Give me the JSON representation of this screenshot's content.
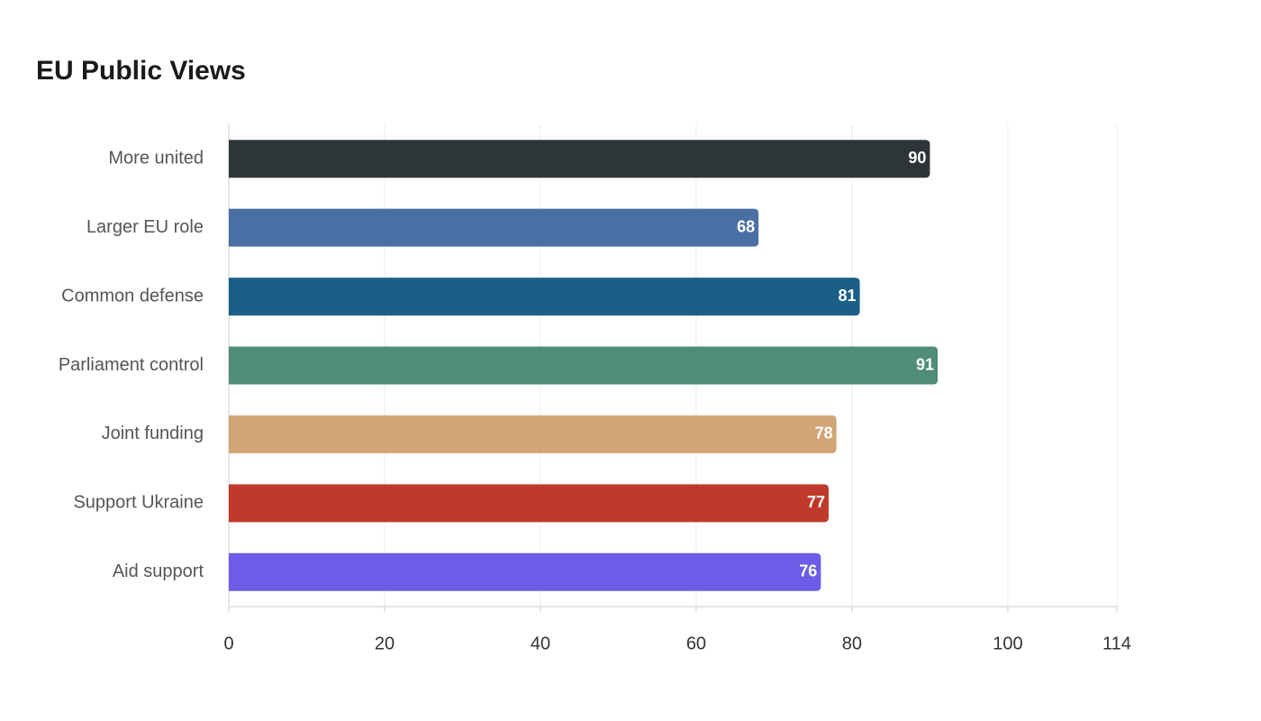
{
  "chart_data": {
    "type": "bar",
    "orientation": "horizontal",
    "title": "EU Public Views",
    "categories": [
      "More united",
      "Larger EU role",
      "Common defense",
      "Parliament control",
      "Joint funding",
      "Support Ukraine",
      "Aid support"
    ],
    "values": [
      90,
      68,
      81,
      91,
      78,
      77,
      76
    ],
    "colors": [
      "#2e3538",
      "#4a6fa5",
      "#1a5f87",
      "#4f8c7a",
      "#d2a576",
      "#c0392b",
      "#6c5ce7"
    ],
    "xlim": [
      0,
      114
    ],
    "xticks": [
      0,
      20,
      40,
      60,
      80,
      100,
      114
    ],
    "grid": true
  }
}
